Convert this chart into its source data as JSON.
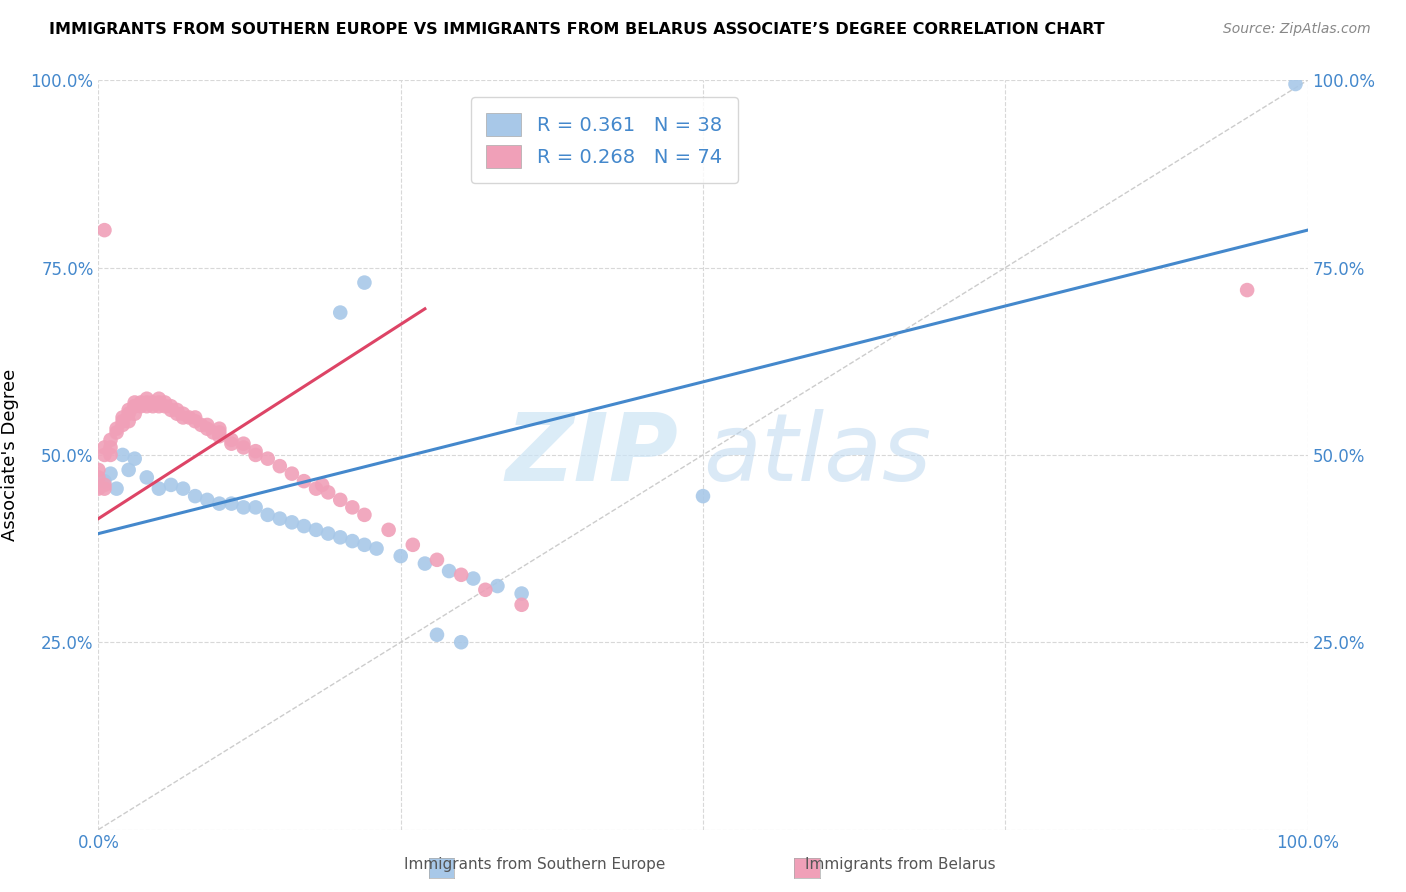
{
  "title": "IMMIGRANTS FROM SOUTHERN EUROPE VS IMMIGRANTS FROM BELARUS ASSOCIATE’S DEGREE CORRELATION CHART",
  "source": "Source: ZipAtlas.com",
  "ylabel": "Associate's Degree",
  "xlim": [
    0,
    1
  ],
  "ylim": [
    0,
    1
  ],
  "watermark_zip": "ZIP",
  "watermark_atlas": "atlas",
  "legend_labels": [
    "Immigrants from Southern Europe",
    "Immigrants from Belarus"
  ],
  "series1_color": "#a8c8e8",
  "series2_color": "#f0a0b8",
  "series1_line_color": "#4488cc",
  "series2_line_color": "#dd4466",
  "label_color": "#4488cc",
  "series1_R": 0.361,
  "series1_N": 38,
  "series2_R": 0.268,
  "series2_N": 74,
  "series1_x": [
    0.005,
    0.01,
    0.015,
    0.02,
    0.025,
    0.03,
    0.04,
    0.05,
    0.06,
    0.07,
    0.08,
    0.09,
    0.1,
    0.11,
    0.12,
    0.13,
    0.14,
    0.15,
    0.16,
    0.17,
    0.18,
    0.19,
    0.2,
    0.21,
    0.22,
    0.23,
    0.25,
    0.27,
    0.29,
    0.31,
    0.33,
    0.35,
    0.2,
    0.22,
    0.28,
    0.3,
    0.5,
    0.99
  ],
  "series1_y": [
    0.465,
    0.475,
    0.455,
    0.5,
    0.48,
    0.495,
    0.47,
    0.455,
    0.46,
    0.455,
    0.445,
    0.44,
    0.435,
    0.435,
    0.43,
    0.43,
    0.42,
    0.415,
    0.41,
    0.405,
    0.4,
    0.395,
    0.39,
    0.385,
    0.38,
    0.375,
    0.365,
    0.355,
    0.345,
    0.335,
    0.325,
    0.315,
    0.69,
    0.73,
    0.26,
    0.25,
    0.445,
    0.995
  ],
  "series2_x": [
    0.0,
    0.0,
    0.0,
    0.005,
    0.005,
    0.005,
    0.005,
    0.01,
    0.01,
    0.01,
    0.015,
    0.015,
    0.02,
    0.02,
    0.02,
    0.025,
    0.025,
    0.025,
    0.03,
    0.03,
    0.03,
    0.03,
    0.035,
    0.035,
    0.04,
    0.04,
    0.04,
    0.045,
    0.045,
    0.05,
    0.05,
    0.05,
    0.055,
    0.055,
    0.06,
    0.06,
    0.065,
    0.065,
    0.07,
    0.07,
    0.075,
    0.08,
    0.08,
    0.085,
    0.09,
    0.09,
    0.095,
    0.1,
    0.1,
    0.1,
    0.11,
    0.11,
    0.12,
    0.12,
    0.13,
    0.13,
    0.14,
    0.15,
    0.16,
    0.17,
    0.18,
    0.185,
    0.19,
    0.2,
    0.21,
    0.22,
    0.24,
    0.26,
    0.28,
    0.3,
    0.32,
    0.35,
    0.005,
    0.95
  ],
  "series2_y": [
    0.455,
    0.47,
    0.48,
    0.455,
    0.46,
    0.5,
    0.51,
    0.5,
    0.51,
    0.52,
    0.53,
    0.535,
    0.54,
    0.545,
    0.55,
    0.545,
    0.555,
    0.56,
    0.555,
    0.565,
    0.565,
    0.57,
    0.565,
    0.57,
    0.565,
    0.57,
    0.575,
    0.565,
    0.57,
    0.565,
    0.57,
    0.575,
    0.565,
    0.57,
    0.56,
    0.565,
    0.555,
    0.56,
    0.55,
    0.555,
    0.55,
    0.545,
    0.55,
    0.54,
    0.535,
    0.54,
    0.53,
    0.525,
    0.53,
    0.535,
    0.515,
    0.52,
    0.51,
    0.515,
    0.5,
    0.505,
    0.495,
    0.485,
    0.475,
    0.465,
    0.455,
    0.46,
    0.45,
    0.44,
    0.43,
    0.42,
    0.4,
    0.38,
    0.36,
    0.34,
    0.32,
    0.3,
    0.8,
    0.72
  ]
}
